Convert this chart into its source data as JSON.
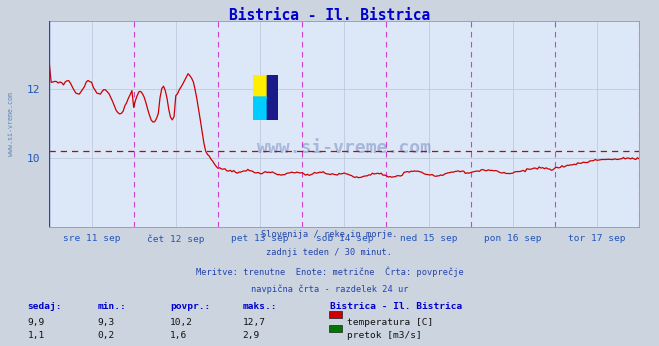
{
  "title": "Bistrica - Il. Bistrica",
  "title_color": "#0000cc",
  "bg_color": "#ccd4e0",
  "plot_bg_color": "#dce8f8",
  "fig_width": 6.59,
  "fig_height": 3.46,
  "label_color": "#2255bb",
  "grid_color": "#b0bcd0",
  "temp_color": "#cc0000",
  "flow_color": "#007700",
  "vline_magenta": "#cc44cc",
  "vline_blue": "#2244bb",
  "avg_temp": 10.2,
  "avg_flow": 1.6,
  "ylim": [
    8.0,
    14.0
  ],
  "yticks": [
    10,
    12
  ],
  "xticklabels": [
    "sre 11 sep",
    "čet 12 sep",
    "pet 13 sep",
    "sob 14 sep",
    "ned 15 sep",
    "pon 16 sep",
    "tor 17 sep"
  ],
  "subtitle_lines": [
    "Slovenija / reke in morje.",
    "zadnji teden / 30 minut.",
    "Meritve: trenutne  Enote: metrične  Črta: povprečje",
    "navpična črta - razdelek 24 ur"
  ],
  "table_headers": [
    "sedaj:",
    "min.:",
    "povpr.:",
    "maks.:"
  ],
  "table_row1": [
    "9,9",
    "9,3",
    "10,2",
    "12,7"
  ],
  "table_row2": [
    "1,1",
    "0,2",
    "1,6",
    "2,9"
  ],
  "legend_title": "Bistrica - Il. Bistrica",
  "legend_entries": [
    "temperatura [C]",
    "pretok [m3/s]"
  ],
  "legend_colors": [
    "#cc0000",
    "#007700"
  ],
  "watermark": "www.si-vreme.com",
  "watermark_color": "#1a3a8a",
  "watermark_alpha": 0.28,
  "side_label_color": "#3366aa"
}
